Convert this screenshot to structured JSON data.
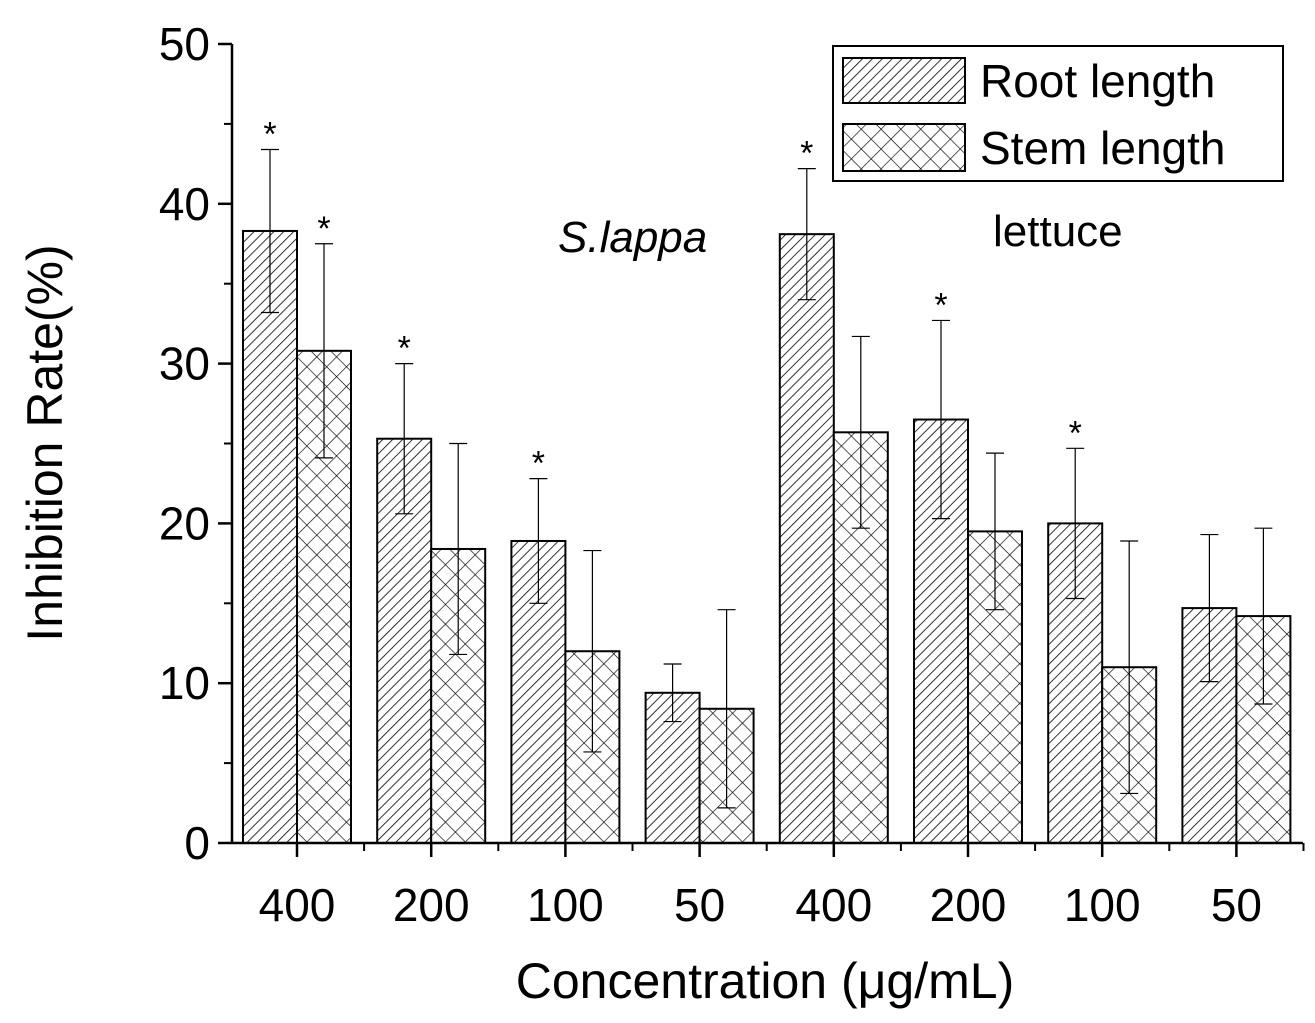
{
  "chart_data": {
    "type": "bar",
    "title": "",
    "xlabel": "Concentration (μg/mL)",
    "ylabel": "Inhibition Rate(%)",
    "ylim": [
      0,
      50
    ],
    "yticks": [
      "0",
      "10",
      "20",
      "30",
      "40",
      "50"
    ],
    "categories": [
      "400",
      "200",
      "100",
      "50",
      "400",
      "200",
      "100",
      "50"
    ],
    "groups": [
      {
        "label": "S.lappa",
        "italic": true
      },
      {
        "label": "lettuce",
        "italic": false
      }
    ],
    "legend": {
      "position": "top-right"
    },
    "series": [
      {
        "name": "Root length",
        "pattern": "diagonal-hatch",
        "values": [
          38.3,
          25.3,
          18.9,
          9.4,
          38.1,
          26.5,
          20.0,
          14.7
        ],
        "errors": [
          5.1,
          4.7,
          3.9,
          1.8,
          4.1,
          6.2,
          4.7,
          4.6
        ],
        "significant": [
          true,
          true,
          true,
          false,
          true,
          true,
          true,
          false
        ]
      },
      {
        "name": "Stem length",
        "pattern": "crosshatch",
        "values": [
          30.8,
          18.4,
          12.0,
          8.4,
          25.7,
          19.5,
          11.0,
          14.2
        ],
        "errors": [
          6.7,
          6.6,
          6.3,
          6.2,
          6.0,
          4.9,
          7.9,
          5.5
        ],
        "significant": [
          true,
          false,
          false,
          false,
          false,
          false,
          false,
          false
        ]
      }
    ],
    "significance_marker": "*"
  }
}
